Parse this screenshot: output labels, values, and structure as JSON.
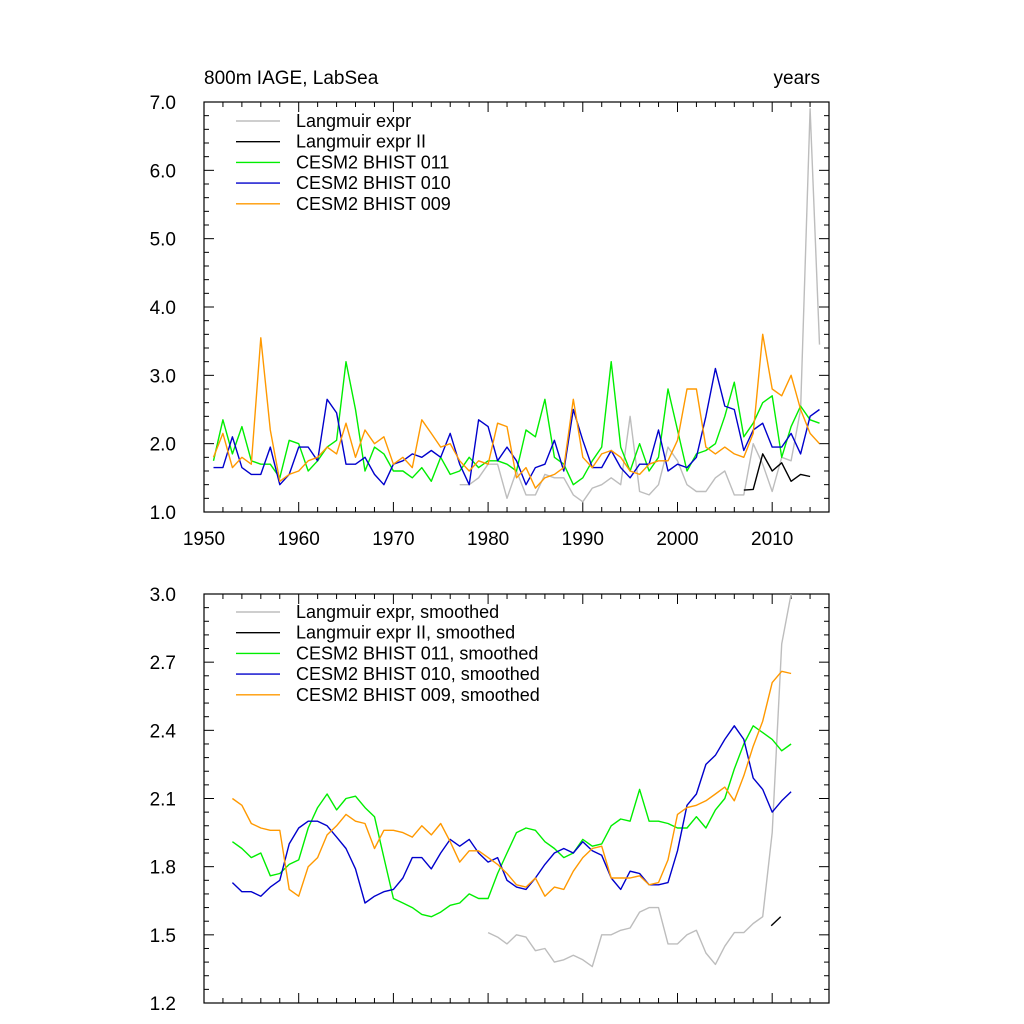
{
  "chart_data": [
    {
      "type": "line",
      "title_left": "800m IAGE, LabSea",
      "title_right": "years",
      "xlabel": "",
      "ylabel": "",
      "xlim": [
        1950,
        2016
      ],
      "ylim": [
        1.0,
        7.0
      ],
      "x_ticks": [
        1950,
        1960,
        1970,
        1980,
        1990,
        2000,
        2010
      ],
      "x_tick_labels": [
        "1950",
        "1960",
        "1970",
        "1980",
        "1990",
        "2000",
        "2010"
      ],
      "y_ticks": [
        1.0,
        2.0,
        3.0,
        4.0,
        5.0,
        6.0,
        7.0
      ],
      "y_tick_labels": [
        "1.0",
        "2.0",
        "3.0",
        "4.0",
        "5.0",
        "6.0",
        "7.0"
      ],
      "legend": "top-left",
      "series": [
        {
          "name": "Langmuir expr",
          "color": "#bdbdbd",
          "x": [
            1977,
            1978,
            1979,
            1980,
            1981,
            1982,
            1983,
            1984,
            1985,
            1986,
            1987,
            1988,
            1989,
            1990,
            1991,
            1992,
            1993,
            1994,
            1995,
            1996,
            1997,
            1998,
            1999,
            2000,
            2001,
            2002,
            2003,
            2004,
            2005,
            2006,
            2007,
            2008,
            2009,
            2010,
            2011,
            2012,
            2013,
            2014,
            2015
          ],
          "values": [
            1.4,
            1.4,
            1.5,
            1.7,
            1.7,
            1.2,
            1.6,
            1.25,
            1.25,
            1.55,
            1.5,
            1.5,
            1.25,
            1.15,
            1.35,
            1.4,
            1.5,
            1.4,
            2.4,
            1.3,
            1.25,
            1.4,
            1.95,
            1.75,
            1.4,
            1.3,
            1.3,
            1.5,
            1.6,
            1.25,
            1.25,
            2.0,
            1.7,
            1.3,
            1.8,
            1.75,
            2.5,
            6.9,
            3.45
          ]
        },
        {
          "name": "Langmuir expr II",
          "color": "#000000",
          "x": [
            2007,
            2008,
            2009,
            2010,
            2011,
            2012,
            2013,
            2014
          ],
          "values": [
            1.32,
            1.33,
            1.85,
            1.6,
            1.72,
            1.45,
            1.55,
            1.52
          ]
        },
        {
          "name": "CESM2 BHIST 011",
          "color": "#00ee00",
          "x": [
            1951,
            1952,
            1953,
            1954,
            1955,
            1956,
            1957,
            1958,
            1959,
            1960,
            1961,
            1962,
            1963,
            1964,
            1965,
            1966,
            1967,
            1968,
            1969,
            1970,
            1971,
            1972,
            1973,
            1974,
            1975,
            1976,
            1977,
            1978,
            1979,
            1980,
            1981,
            1982,
            1983,
            1984,
            1985,
            1986,
            1987,
            1988,
            1989,
            1990,
            1991,
            1992,
            1993,
            1994,
            1995,
            1996,
            1997,
            1998,
            1999,
            2000,
            2001,
            2002,
            2003,
            2004,
            2005,
            2006,
            2007,
            2008,
            2009,
            2010,
            2011,
            2012,
            2013,
            2014,
            2015
          ],
          "values": [
            1.75,
            2.35,
            1.85,
            2.25,
            1.75,
            1.7,
            1.7,
            1.5,
            2.05,
            2.0,
            1.6,
            1.75,
            1.95,
            2.05,
            3.2,
            2.5,
            1.6,
            1.95,
            1.85,
            1.6,
            1.6,
            1.5,
            1.65,
            1.45,
            1.8,
            1.55,
            1.6,
            1.8,
            1.65,
            1.75,
            1.75,
            1.7,
            1.6,
            2.2,
            2.1,
            2.65,
            1.8,
            1.7,
            1.4,
            1.5,
            1.75,
            1.95,
            3.2,
            1.95,
            1.6,
            2.0,
            1.6,
            1.8,
            2.8,
            2.2,
            1.6,
            1.85,
            1.9,
            2.0,
            2.4,
            2.9,
            2.1,
            2.3,
            2.6,
            2.7,
            1.8,
            2.25,
            2.55,
            2.35,
            2.3
          ]
        },
        {
          "name": "CESM2 BHIST 010",
          "color": "#0000cc",
          "x": [
            1951,
            1952,
            1953,
            1954,
            1955,
            1956,
            1957,
            1958,
            1959,
            1960,
            1961,
            1962,
            1963,
            1964,
            1965,
            1966,
            1967,
            1968,
            1969,
            1970,
            1971,
            1972,
            1973,
            1974,
            1975,
            1976,
            1977,
            1978,
            1979,
            1980,
            1981,
            1982,
            1983,
            1984,
            1985,
            1986,
            1987,
            1988,
            1989,
            1990,
            1991,
            1992,
            1993,
            1994,
            1995,
            1996,
            1997,
            1998,
            1999,
            2000,
            2001,
            2002,
            2003,
            2004,
            2005,
            2006,
            2007,
            2008,
            2009,
            2010,
            2011,
            2012,
            2013,
            2014,
            2015
          ],
          "values": [
            1.65,
            1.65,
            2.1,
            1.65,
            1.55,
            1.55,
            1.95,
            1.4,
            1.55,
            1.95,
            1.95,
            1.75,
            2.65,
            2.45,
            1.7,
            1.7,
            1.8,
            1.55,
            1.4,
            1.7,
            1.75,
            1.85,
            1.8,
            1.9,
            1.8,
            2.15,
            1.7,
            1.4,
            2.35,
            2.25,
            1.75,
            1.95,
            1.75,
            1.4,
            1.65,
            1.7,
            2.05,
            1.6,
            2.5,
            2.05,
            1.65,
            1.65,
            1.9,
            1.65,
            1.5,
            1.7,
            1.7,
            2.2,
            1.6,
            1.7,
            1.65,
            1.8,
            2.4,
            3.1,
            2.55,
            2.5,
            1.9,
            2.2,
            2.3,
            1.95,
            1.95,
            2.15,
            1.85,
            2.4,
            2.5
          ]
        },
        {
          "name": "CESM2 BHIST 009",
          "color": "#ff9900",
          "x": [
            1951,
            1952,
            1953,
            1954,
            1955,
            1956,
            1957,
            1958,
            1959,
            1960,
            1961,
            1962,
            1963,
            1964,
            1965,
            1966,
            1967,
            1968,
            1969,
            1970,
            1971,
            1972,
            1973,
            1974,
            1975,
            1976,
            1977,
            1978,
            1979,
            1980,
            1981,
            1982,
            1983,
            1984,
            1985,
            1986,
            1987,
            1988,
            1989,
            1990,
            1991,
            1992,
            1993,
            1994,
            1995,
            1996,
            1997,
            1998,
            1999,
            2000,
            2001,
            2002,
            2003,
            2004,
            2005,
            2006,
            2007,
            2008,
            2009,
            2010,
            2011,
            2012,
            2013,
            2014,
            2015
          ],
          "values": [
            1.8,
            2.15,
            1.65,
            1.8,
            1.7,
            3.55,
            2.2,
            1.45,
            1.55,
            1.6,
            1.75,
            1.8,
            1.95,
            1.85,
            2.3,
            1.8,
            2.2,
            2.0,
            2.1,
            1.7,
            1.8,
            1.65,
            2.35,
            2.15,
            1.95,
            2.0,
            1.75,
            1.6,
            1.75,
            1.7,
            2.3,
            2.25,
            1.5,
            1.65,
            1.35,
            1.5,
            1.55,
            1.65,
            2.65,
            1.8,
            1.65,
            1.85,
            1.9,
            1.8,
            1.6,
            1.55,
            1.7,
            1.75,
            1.75,
            2.05,
            2.8,
            2.8,
            1.95,
            1.85,
            1.95,
            1.85,
            1.8,
            2.15,
            3.6,
            2.8,
            2.7,
            3.0,
            2.5,
            2.15,
            2.0
          ]
        }
      ]
    },
    {
      "type": "line",
      "title_left": "",
      "title_right": "",
      "xlabel": "",
      "ylabel": "",
      "xlim": [
        1950,
        2016
      ],
      "ylim": [
        1.2,
        3.0
      ],
      "x_ticks": [
        1950,
        1960,
        1970,
        1980,
        1990,
        2000,
        2010
      ],
      "y_ticks": [
        1.2,
        1.5,
        1.8,
        2.1,
        2.4,
        2.7,
        3.0
      ],
      "y_tick_labels": [
        "1.2",
        "1.5",
        "1.8",
        "2.1",
        "2.4",
        "2.7",
        "3.0"
      ],
      "legend": "top-left",
      "series": [
        {
          "name": "Langmuir expr, smoothed",
          "color": "#bdbdbd",
          "x": [
            1980,
            1981,
            1982,
            1983,
            1984,
            1985,
            1986,
            1987,
            1988,
            1989,
            1990,
            1991,
            1992,
            1993,
            1994,
            1995,
            1996,
            1997,
            1998,
            1999,
            2000,
            2001,
            2002,
            2003,
            2004,
            2005,
            2006,
            2007,
            2008,
            2009,
            2010,
            2011,
            2012
          ],
          "values": [
            1.51,
            1.49,
            1.46,
            1.5,
            1.49,
            1.43,
            1.44,
            1.38,
            1.39,
            1.41,
            1.39,
            1.36,
            1.5,
            1.5,
            1.52,
            1.53,
            1.6,
            1.62,
            1.62,
            1.46,
            1.46,
            1.5,
            1.52,
            1.42,
            1.37,
            1.45,
            1.51,
            1.51,
            1.55,
            1.58,
            1.95,
            2.78,
            3.0
          ]
        },
        {
          "name": "Langmuir expr II, smoothed",
          "color": "#000000",
          "x": [
            2009.9,
            2010.9
          ],
          "values": [
            1.54,
            1.58
          ]
        },
        {
          "name": "CESM2 BHIST 011, smoothed",
          "color": "#00ee00",
          "x": [
            1953,
            1954,
            1955,
            1956,
            1957,
            1958,
            1959,
            1960,
            1961,
            1962,
            1963,
            1964,
            1965,
            1966,
            1967,
            1968,
            1969,
            1970,
            1971,
            1972,
            1973,
            1974,
            1975,
            1976,
            1977,
            1978,
            1979,
            1980,
            1981,
            1982,
            1983,
            1984,
            1985,
            1986,
            1987,
            1988,
            1989,
            1990,
            1991,
            1992,
            1993,
            1994,
            1995,
            1996,
            1997,
            1998,
            1999,
            2000,
            2001,
            2002,
            2003,
            2004,
            2005,
            2006,
            2007,
            2008,
            2009,
            2010,
            2011,
            2012
          ],
          "values": [
            1.91,
            1.88,
            1.84,
            1.86,
            1.76,
            1.77,
            1.81,
            1.83,
            1.97,
            2.06,
            2.12,
            2.05,
            2.1,
            2.11,
            2.06,
            2.02,
            1.84,
            1.66,
            1.64,
            1.62,
            1.59,
            1.58,
            1.6,
            1.63,
            1.64,
            1.68,
            1.66,
            1.66,
            1.77,
            1.86,
            1.95,
            1.97,
            1.96,
            1.91,
            1.88,
            1.84,
            1.86,
            1.92,
            1.89,
            1.9,
            1.98,
            2.01,
            2.0,
            2.14,
            2.0,
            2.0,
            1.99,
            1.97,
            1.97,
            2.02,
            1.97,
            2.05,
            2.1,
            2.23,
            2.34,
            2.42,
            2.39,
            2.36,
            2.31,
            2.34
          ]
        },
        {
          "name": "CESM2 BHIST 010, smoothed",
          "color": "#0000cc",
          "x": [
            1953,
            1954,
            1955,
            1956,
            1957,
            1958,
            1959,
            1960,
            1961,
            1962,
            1963,
            1964,
            1965,
            1966,
            1967,
            1968,
            1969,
            1970,
            1971,
            1972,
            1973,
            1974,
            1975,
            1976,
            1977,
            1978,
            1979,
            1980,
            1981,
            1982,
            1983,
            1984,
            1985,
            1986,
            1987,
            1988,
            1989,
            1990,
            1991,
            1992,
            1993,
            1994,
            1995,
            1996,
            1997,
            1998,
            1999,
            2000,
            2001,
            2002,
            2003,
            2004,
            2005,
            2006,
            2007,
            2008,
            2009,
            2010,
            2011,
            2012
          ],
          "values": [
            1.73,
            1.69,
            1.69,
            1.67,
            1.71,
            1.74,
            1.9,
            1.97,
            2.0,
            2.0,
            1.98,
            1.93,
            1.88,
            1.79,
            1.64,
            1.67,
            1.69,
            1.7,
            1.75,
            1.84,
            1.84,
            1.79,
            1.86,
            1.92,
            1.89,
            1.92,
            1.86,
            1.82,
            1.84,
            1.74,
            1.71,
            1.7,
            1.75,
            1.81,
            1.86,
            1.88,
            1.86,
            1.91,
            1.87,
            1.85,
            1.75,
            1.7,
            1.78,
            1.77,
            1.72,
            1.72,
            1.73,
            1.87,
            2.07,
            2.12,
            2.25,
            2.29,
            2.36,
            2.42,
            2.36,
            2.19,
            2.14,
            2.04,
            2.09,
            2.13
          ]
        },
        {
          "name": "CESM2 BHIST 009, smoothed",
          "color": "#ff9900",
          "x": [
            1953,
            1954,
            1955,
            1956,
            1957,
            1958,
            1959,
            1960,
            1961,
            1962,
            1963,
            1964,
            1965,
            1966,
            1967,
            1968,
            1969,
            1970,
            1971,
            1972,
            1973,
            1974,
            1975,
            1976,
            1977,
            1978,
            1979,
            1980,
            1981,
            1982,
            1983,
            1984,
            1985,
            1986,
            1987,
            1988,
            1989,
            1990,
            1991,
            1992,
            1993,
            1994,
            1995,
            1996,
            1997,
            1998,
            1999,
            2000,
            2001,
            2002,
            2003,
            2004,
            2005,
            2006,
            2007,
            2008,
            2009,
            2010,
            2011,
            2012
          ],
          "values": [
            2.1,
            2.07,
            1.99,
            1.97,
            1.96,
            1.96,
            1.7,
            1.67,
            1.8,
            1.84,
            1.94,
            1.98,
            2.03,
            2.0,
            1.99,
            1.88,
            1.96,
            1.96,
            1.95,
            1.93,
            1.98,
            1.94,
            1.99,
            1.91,
            1.82,
            1.87,
            1.87,
            1.84,
            1.81,
            1.77,
            1.72,
            1.71,
            1.75,
            1.67,
            1.71,
            1.7,
            1.78,
            1.84,
            1.88,
            1.89,
            1.75,
            1.75,
            1.75,
            1.76,
            1.72,
            1.73,
            1.83,
            2.03,
            2.06,
            2.07,
            2.09,
            2.12,
            2.15,
            2.09,
            2.2,
            2.33,
            2.44,
            2.61,
            2.66,
            2.65
          ]
        }
      ]
    }
  ]
}
